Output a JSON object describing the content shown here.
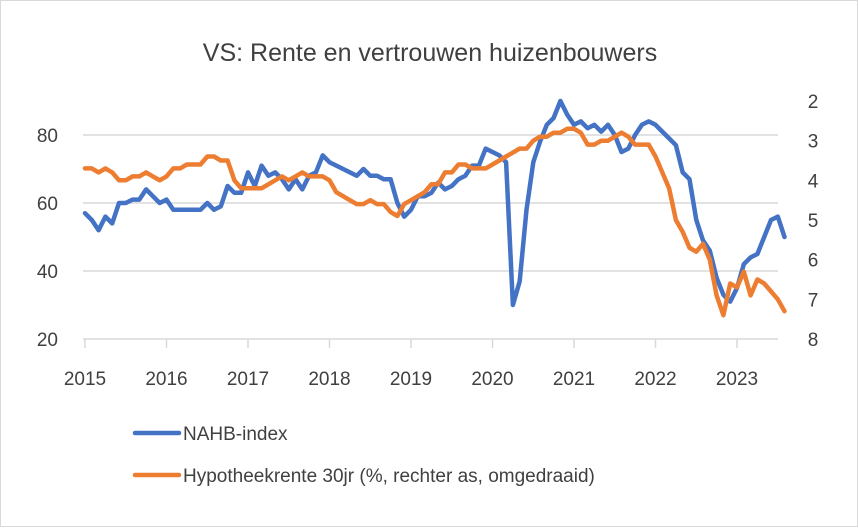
{
  "chart_data": {
    "type": "line",
    "title": "VS: Rente en vertrouwen huizenbouwers",
    "x_start": "2015-01",
    "x_frequency": "monthly",
    "x_ticks": [
      "2015",
      "2016",
      "2017",
      "2018",
      "2019",
      "2020",
      "2021",
      "2022",
      "2023"
    ],
    "left_axis": {
      "ylim": [
        20,
        90
      ],
      "ticks": [
        "20",
        "40",
        "60",
        "80"
      ]
    },
    "right_axis": {
      "ylim": [
        2,
        8
      ],
      "reversed": true,
      "ticks": [
        "2",
        "3",
        "4",
        "5",
        "6",
        "7",
        "8"
      ]
    },
    "grid": true,
    "legend": "bottom",
    "series": [
      {
        "name": "NAHB-index",
        "axis": "left",
        "color": "#4472c4",
        "values": [
          57,
          55,
          52,
          56,
          54,
          60,
          60,
          61,
          61,
          64,
          62,
          60,
          61,
          58,
          58,
          58,
          58,
          58,
          60,
          58,
          59,
          65,
          63,
          63,
          69,
          65,
          71,
          68,
          69,
          67,
          64,
          67,
          64,
          68,
          69,
          74,
          72,
          71,
          70,
          69,
          68,
          70,
          68,
          68,
          67,
          67,
          60,
          56,
          58,
          62,
          62,
          63,
          66,
          64,
          65,
          67,
          68,
          71,
          71,
          76,
          75,
          74,
          72,
          30,
          37,
          58,
          72,
          78,
          83,
          85,
          90,
          86,
          83,
          84,
          82,
          83,
          81,
          83,
          80,
          75,
          76,
          80,
          83,
          84,
          83,
          81,
          79,
          77,
          69,
          67,
          55,
          49,
          46,
          38,
          33,
          31,
          35,
          42,
          44,
          45,
          50,
          55,
          56,
          50
        ]
      },
      {
        "name": "Hypotheekrente 30jr (%, rechter as, omgedraaid)",
        "axis": "right",
        "color": "#ed7d31",
        "values": [
          3.7,
          3.7,
          3.8,
          3.7,
          3.8,
          4.0,
          4.0,
          3.9,
          3.9,
          3.8,
          3.9,
          4.0,
          3.9,
          3.7,
          3.7,
          3.6,
          3.6,
          3.6,
          3.4,
          3.4,
          3.5,
          3.5,
          4.0,
          4.2,
          4.2,
          4.2,
          4.2,
          4.1,
          4.0,
          3.9,
          4.0,
          3.9,
          3.8,
          3.9,
          3.9,
          3.9,
          4.0,
          4.3,
          4.4,
          4.5,
          4.6,
          4.6,
          4.5,
          4.6,
          4.6,
          4.8,
          4.9,
          4.6,
          4.5,
          4.4,
          4.3,
          4.1,
          4.1,
          3.8,
          3.8,
          3.6,
          3.6,
          3.7,
          3.7,
          3.7,
          3.6,
          3.5,
          3.4,
          3.3,
          3.2,
          3.2,
          3.0,
          2.9,
          2.9,
          2.8,
          2.8,
          2.7,
          2.7,
          2.8,
          3.1,
          3.1,
          3.0,
          3.0,
          2.9,
          2.8,
          2.9,
          3.1,
          3.1,
          3.1,
          3.4,
          3.8,
          4.2,
          5.0,
          5.3,
          5.7,
          5.8,
          5.6,
          6.0,
          6.9,
          7.4,
          6.6,
          6.7,
          6.3,
          6.9,
          6.5,
          6.6,
          6.8,
          7.0,
          7.3
        ]
      }
    ]
  }
}
